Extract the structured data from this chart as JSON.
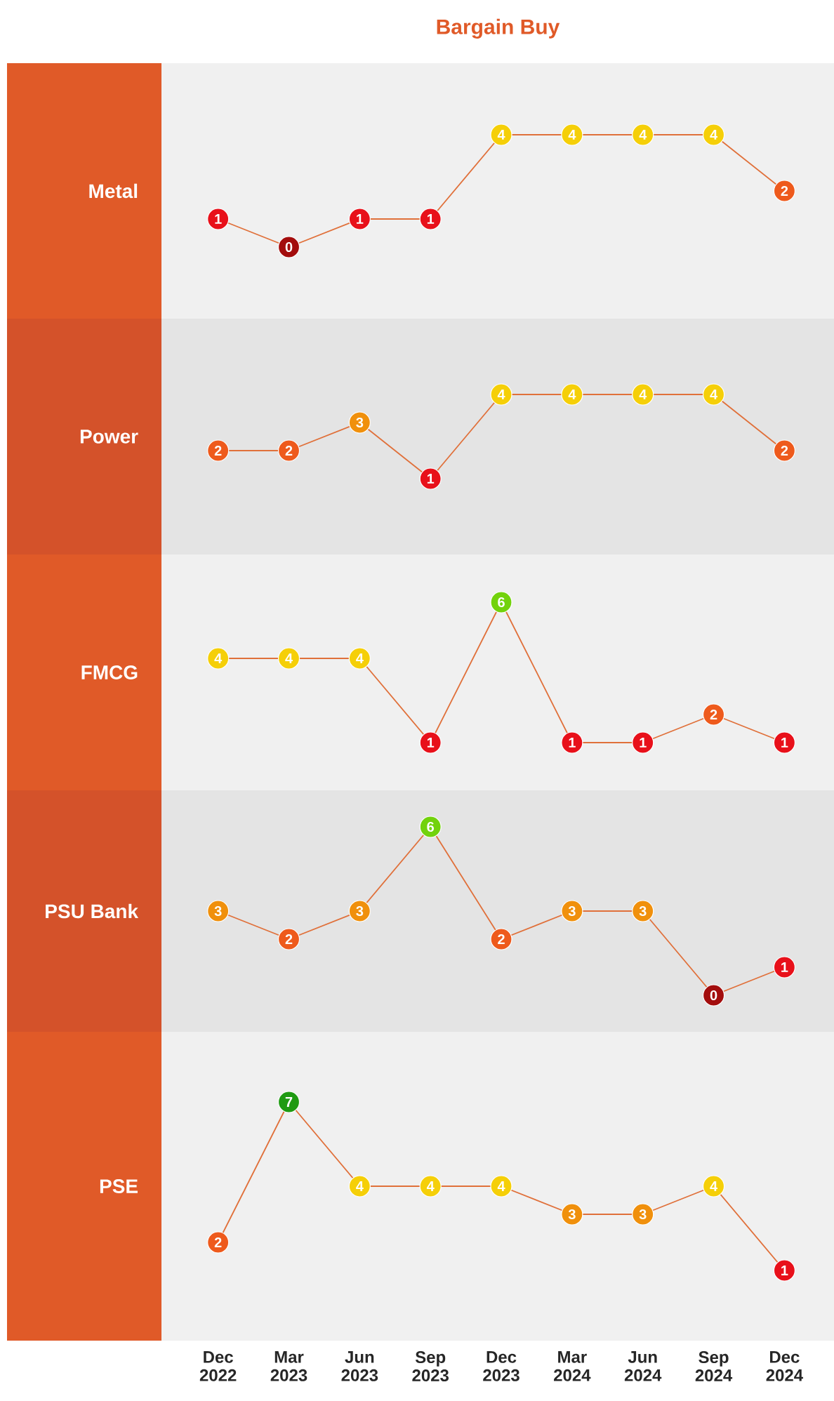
{
  "chart_data": [
    {
      "type": "line",
      "title": "Bargain Buy",
      "ylabel": "Metal",
      "data_labels": true,
      "marker": "circle",
      "series": [
        {
          "color": "#e0703a",
          "values": [
            1,
            0,
            1,
            1,
            4,
            4,
            4,
            4,
            2
          ],
          "colors": [
            "#e8101a",
            "#a30d0d",
            "#e8101a",
            "#e8101a",
            "#f5cf08",
            "#f5cf08",
            "#f5cf08",
            "#f5cf08",
            "#ee5a1c"
          ]
        }
      ]
    },
    {
      "type": "line",
      "ylabel": "Power",
      "data_labels": true,
      "marker": "circle",
      "series": [
        {
          "color": "#e0703a",
          "values": [
            2,
            2,
            3,
            1,
            4,
            4,
            4,
            4,
            2
          ],
          "colors": [
            "#ee5a1c",
            "#ee5a1c",
            "#f0900c",
            "#e8101a",
            "#f5cf08",
            "#f5cf08",
            "#f5cf08",
            "#f5cf08",
            "#ee5a1c"
          ]
        }
      ]
    },
    {
      "type": "line",
      "ylabel": "FMCG",
      "data_labels": true,
      "marker": "circle",
      "series": [
        {
          "color": "#e0703a",
          "values": [
            4,
            4,
            4,
            1,
            6,
            1,
            1,
            2,
            1
          ],
          "colors": [
            "#f5cf08",
            "#f5cf08",
            "#f5cf08",
            "#e8101a",
            "#72d20c",
            "#e8101a",
            "#e8101a",
            "#ee5a1c",
            "#e8101a"
          ]
        }
      ]
    },
    {
      "type": "line",
      "ylabel": "PSU Bank",
      "data_labels": true,
      "marker": "circle",
      "series": [
        {
          "color": "#e0703a",
          "values": [
            3,
            2,
            3,
            6,
            2,
            3,
            3,
            0,
            1
          ],
          "colors": [
            "#f0900c",
            "#ee5a1c",
            "#f0900c",
            "#72d20c",
            "#ee5a1c",
            "#f0900c",
            "#f0900c",
            "#a30d0d",
            "#e8101a"
          ]
        }
      ]
    },
    {
      "type": "line",
      "ylabel": "PSE",
      "categories": [
        "Dec 2022",
        "Mar 2023",
        "Jun 2023",
        "Sep 2023",
        "Dec 2023",
        "Mar 2024",
        "Jun 2024",
        "Sep 2024",
        "Dec 2024"
      ],
      "data_labels": true,
      "marker": "circle",
      "series": [
        {
          "color": "#e0703a",
          "values": [
            2,
            7,
            4,
            4,
            4,
            3,
            3,
            4,
            1
          ],
          "colors": [
            "#ee5a1c",
            "#1f9a12",
            "#f5cf08",
            "#f5cf08",
            "#f5cf08",
            "#f0900c",
            "#f0900c",
            "#f5cf08",
            "#e8101a"
          ]
        }
      ]
    }
  ]
}
